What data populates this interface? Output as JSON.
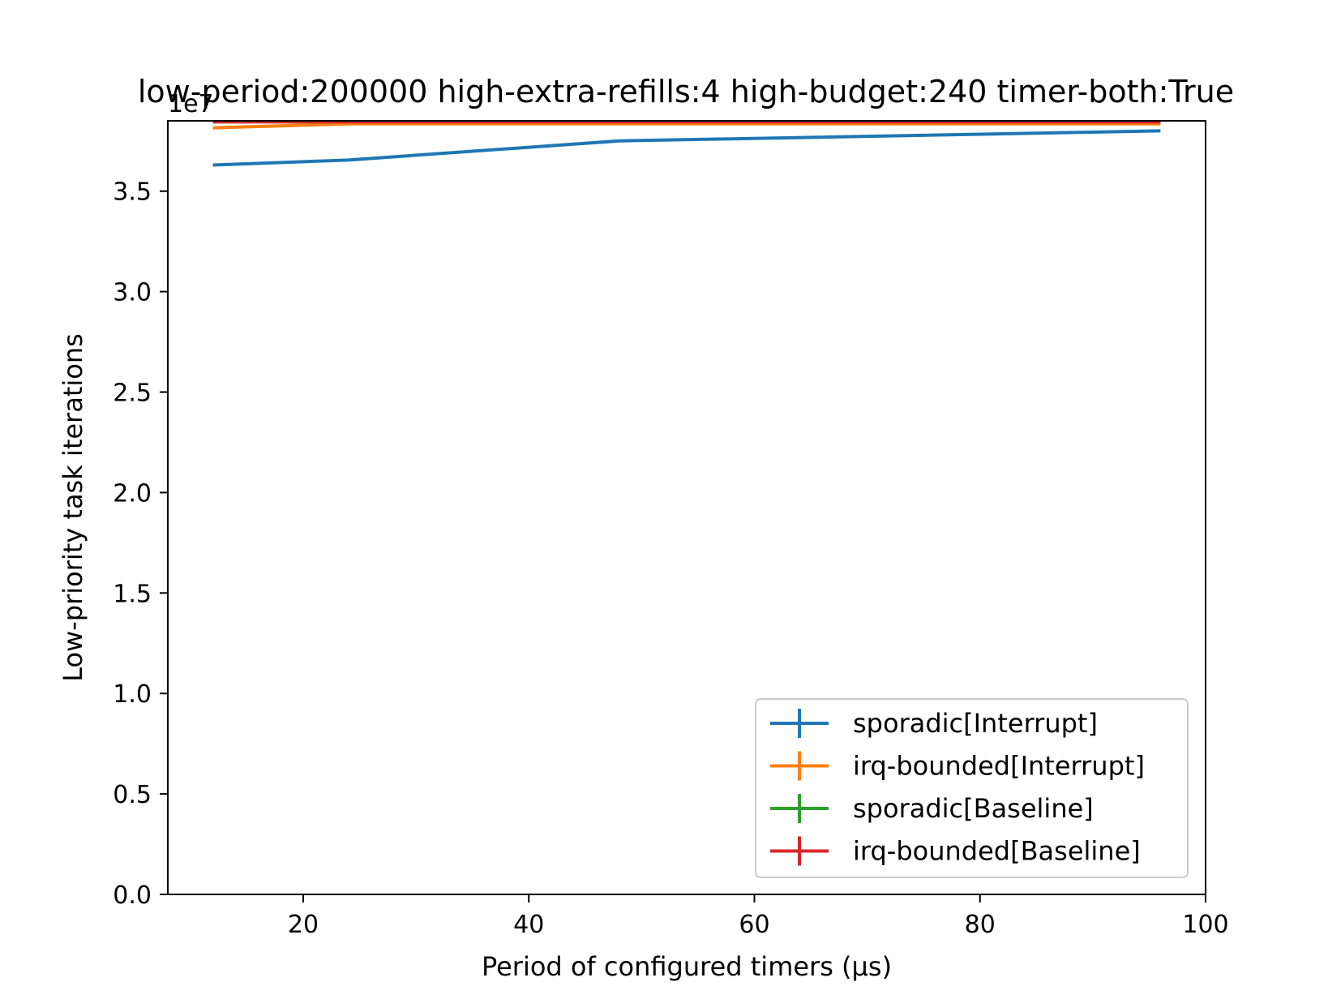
{
  "chart_data": {
    "type": "line",
    "title": "low-period:200000 high-extra-refills:4 high-budget:240 timer-both:True",
    "xlabel": "Period of configured timers (μs)",
    "ylabel": "Low-priority task iterations",
    "y_offset_label": "1e7",
    "xlim": [
      8,
      100
    ],
    "ylim": [
      0,
      3.85
    ],
    "y_scale_exponent": 7,
    "xticks": [
      20,
      40,
      60,
      80,
      100
    ],
    "xtick_labels": [
      "20",
      "40",
      "60",
      "80",
      "100"
    ],
    "yticks": [
      0,
      0.5,
      1.0,
      1.5,
      2.0,
      2.5,
      3.0,
      3.5
    ],
    "ytick_labels": [
      "0.0",
      "0.5",
      "1.0",
      "1.5",
      "2.0",
      "2.5",
      "3.0",
      "3.5"
    ],
    "grid": false,
    "legend_position": "lower-right",
    "x": [
      12,
      24,
      48,
      96
    ],
    "series": [
      {
        "name": "sporadic[Interrupt]",
        "color": "#1f77b4",
        "values": [
          3.63,
          3.655,
          3.75,
          3.8
        ]
      },
      {
        "name": "irq-bounded[Interrupt]",
        "color": "#ff7f0e",
        "values": [
          3.815,
          3.835,
          3.835,
          3.835
        ]
      },
      {
        "name": "sporadic[Baseline]",
        "color": "#2ca02c",
        "values": [
          3.845,
          3.845,
          3.845,
          3.845
        ]
      },
      {
        "name": "irq-bounded[Baseline]",
        "color": "#d62728",
        "values": [
          3.845,
          3.845,
          3.845,
          3.845
        ]
      }
    ]
  }
}
